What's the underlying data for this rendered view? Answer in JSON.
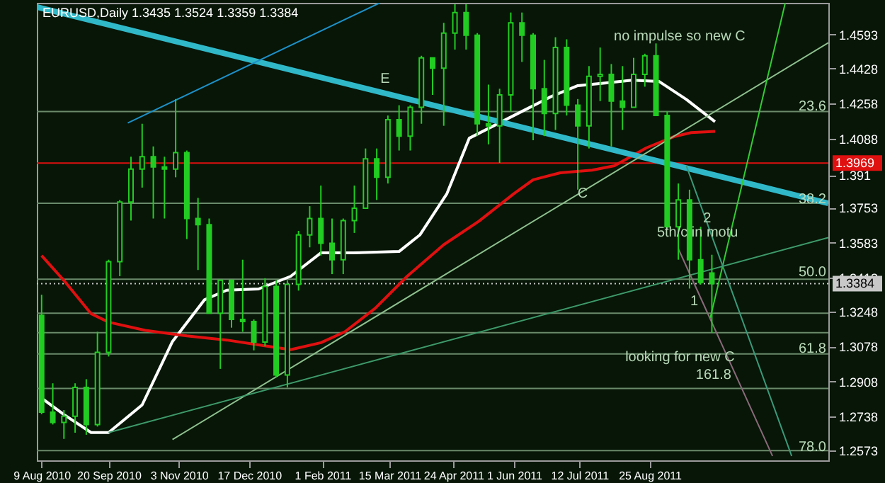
{
  "chart_data": {
    "type": "candlestick",
    "title": "EURUSD,Daily  1.3435 1.3524 1.3359 1.3384",
    "xlim": [
      "2010-08-06",
      "2011-12-15"
    ],
    "xticks": [
      {
        "value": "2010-08-09",
        "label": "9 Aug 2010"
      },
      {
        "value": "2010-09-20",
        "label": "20 Sep 2010"
      },
      {
        "value": "2010-11-03",
        "label": "3 Nov 2010"
      },
      {
        "value": "2010-12-17",
        "label": "17 Dec 2010"
      },
      {
        "value": "2011-02-01",
        "label": "1 Feb 2011"
      },
      {
        "value": "2011-03-15",
        "label": "15 Mar 2011"
      },
      {
        "value": "2011-04-24",
        "label": "24 Apr 2011"
      },
      {
        "value": "2011-06-01",
        "label": "1 Jun 2011"
      },
      {
        "value": "2011-07-12",
        "label": "12 Jul 2011"
      },
      {
        "value": "2011-08-25",
        "label": "25 Aug 2011"
      }
    ],
    "ylim": [
      1.2526,
      1.4747
    ],
    "yticks": [
      1.4593,
      1.4428,
      1.4258,
      1.4088,
      1.391,
      1.3753,
      1.3583,
      1.3413,
      1.3248,
      1.3078,
      1.2908,
      1.2738,
      1.2573
    ],
    "grid": false,
    "marker": "none",
    "series": [
      {
        "type": "candlestick",
        "color": "#22cc22",
        "x": [
          "2010-08-09",
          "2010-08-16",
          "2010-08-23",
          "2010-08-30",
          "2010-09-06",
          "2010-09-13",
          "2010-09-20",
          "2010-09-27",
          "2010-10-04",
          "2010-10-11",
          "2010-10-18",
          "2010-10-25",
          "2010-11-01",
          "2010-11-08",
          "2010-11-15",
          "2010-11-22",
          "2010-11-29",
          "2010-12-06",
          "2010-12-13",
          "2010-12-20",
          "2010-12-27",
          "2011-01-03",
          "2011-01-10",
          "2011-01-17",
          "2011-01-24",
          "2011-01-31",
          "2011-02-07",
          "2011-02-14",
          "2011-02-21",
          "2011-02-28",
          "2011-03-07",
          "2011-03-14",
          "2011-03-21",
          "2011-03-28",
          "2011-04-04",
          "2011-04-11",
          "2011-04-18",
          "2011-04-25",
          "2011-05-02",
          "2011-05-09",
          "2011-05-16",
          "2011-05-23",
          "2011-05-30",
          "2011-06-06",
          "2011-06-13",
          "2011-06-20",
          "2011-06-27",
          "2011-07-04",
          "2011-07-11",
          "2011-07-18",
          "2011-07-25",
          "2011-08-01",
          "2011-08-08",
          "2011-08-15",
          "2011-08-22",
          "2011-08-29",
          "2011-09-05",
          "2011-09-12",
          "2011-09-19",
          "2011-09-26",
          "2011-10-03"
        ],
        "ohlc": [
          [
            1.323,
            1.333,
            1.275,
            1.276
          ],
          [
            1.276,
            1.29,
            1.27,
            1.271
          ],
          [
            1.271,
            1.277,
            1.263,
            1.274
          ],
          [
            1.274,
            1.29,
            1.266,
            1.288
          ],
          [
            1.288,
            1.292,
            1.265,
            1.27
          ],
          [
            1.27,
            1.315,
            1.269,
            1.305
          ],
          [
            1.305,
            1.35,
            1.303,
            1.349
          ],
          [
            1.349,
            1.379,
            1.342,
            1.378
          ],
          [
            1.378,
            1.4,
            1.369,
            1.394
          ],
          [
            1.394,
            1.416,
            1.385,
            1.4
          ],
          [
            1.4,
            1.405,
            1.37,
            1.395
          ],
          [
            1.395,
            1.4,
            1.37,
            1.394
          ],
          [
            1.394,
            1.428,
            1.39,
            1.402
          ],
          [
            1.402,
            1.403,
            1.36,
            1.37
          ],
          [
            1.37,
            1.38,
            1.345,
            1.367
          ],
          [
            1.367,
            1.37,
            1.324,
            1.324
          ],
          [
            1.324,
            1.34,
            1.297,
            1.34
          ],
          [
            1.34,
            1.34,
            1.317,
            1.321
          ],
          [
            1.321,
            1.35,
            1.315,
            1.32
          ],
          [
            1.32,
            1.321,
            1.306,
            1.31
          ],
          [
            1.31,
            1.341,
            1.308,
            1.337
          ],
          [
            1.337,
            1.34,
            1.293,
            1.294
          ],
          [
            1.294,
            1.34,
            1.288,
            1.338
          ],
          [
            1.338,
            1.364,
            1.335,
            1.362
          ],
          [
            1.362,
            1.376,
            1.356,
            1.37
          ],
          [
            1.37,
            1.386,
            1.352,
            1.358
          ],
          [
            1.358,
            1.37,
            1.343,
            1.35
          ],
          [
            1.35,
            1.37,
            1.343,
            1.369
          ],
          [
            1.369,
            1.386,
            1.363,
            1.375
          ],
          [
            1.375,
            1.404,
            1.375,
            1.399
          ],
          [
            1.399,
            1.404,
            1.379,
            1.39
          ],
          [
            1.39,
            1.42,
            1.387,
            1.418
          ],
          [
            1.418,
            1.425,
            1.403,
            1.41
          ],
          [
            1.41,
            1.425,
            1.403,
            1.424
          ],
          [
            1.424,
            1.449,
            1.416,
            1.448
          ],
          [
            1.448,
            1.448,
            1.43,
            1.443
          ],
          [
            1.443,
            1.465,
            1.415,
            1.46
          ],
          [
            1.46,
            1.474,
            1.452,
            1.47
          ],
          [
            1.47,
            1.474,
            1.452,
            1.459
          ],
          [
            1.459,
            1.46,
            1.41,
            1.416
          ],
          [
            1.416,
            1.435,
            1.406,
            1.415
          ],
          [
            1.415,
            1.433,
            1.397,
            1.43
          ],
          [
            1.43,
            1.47,
            1.422,
            1.465
          ],
          [
            1.465,
            1.47,
            1.446,
            1.459
          ],
          [
            1.459,
            1.46,
            1.408,
            1.433
          ],
          [
            1.433,
            1.447,
            1.41,
            1.421
          ],
          [
            1.421,
            1.458,
            1.413,
            1.453
          ],
          [
            1.453,
            1.457,
            1.42,
            1.425
          ],
          [
            1.425,
            1.428,
            1.384,
            1.415
          ],
          [
            1.415,
            1.444,
            1.404,
            1.439
          ],
          [
            1.439,
            1.453,
            1.427,
            1.44
          ],
          [
            1.44,
            1.445,
            1.405,
            1.427
          ],
          [
            1.427,
            1.444,
            1.413,
            1.424
          ],
          [
            1.424,
            1.448,
            1.424,
            1.44
          ],
          [
            1.44,
            1.45,
            1.434,
            1.449
          ],
          [
            1.449,
            1.455,
            1.42,
            1.42
          ],
          [
            1.42,
            1.422,
            1.365,
            1.366
          ],
          [
            1.366,
            1.387,
            1.35,
            1.379
          ],
          [
            1.379,
            1.384,
            1.336,
            1.35
          ],
          [
            1.35,
            1.366,
            1.338,
            1.339
          ],
          [
            1.3435,
            1.3524,
            1.3145,
            1.3384
          ]
        ]
      },
      {
        "type": "line",
        "color": "#ffffff",
        "x": [
          "2010-08-09",
          "2010-08-23",
          "2010-09-09",
          "2010-09-20",
          "2010-10-11",
          "2010-10-30",
          "2010-11-19",
          "2010-12-03",
          "2010-12-23",
          "2011-01-12",
          "2011-01-31",
          "2011-02-20",
          "2011-03-21",
          "2011-04-03",
          "2011-04-20",
          "2011-05-04",
          "2011-05-21",
          "2011-06-07",
          "2011-06-24",
          "2011-07-11",
          "2011-07-28",
          "2011-08-14",
          "2011-08-31",
          "2011-09-17",
          "2011-10-05"
        ],
        "values": [
          1.2828,
          1.2748,
          1.2661,
          1.2661,
          1.2795,
          1.3103,
          1.3305,
          1.3352,
          1.3358,
          1.3419,
          1.3533,
          1.3533,
          1.354,
          1.362,
          1.3821,
          1.409,
          1.4157,
          1.4224,
          1.4291,
          1.4345,
          1.4358,
          1.4371,
          1.4365,
          1.4278,
          1.417
        ]
      },
      {
        "type": "line",
        "color": "#e01010",
        "x": [
          "2010-08-09",
          "2010-08-23",
          "2010-09-09",
          "2010-09-20",
          "2010-10-13",
          "2010-11-08",
          "2010-12-03",
          "2010-12-26",
          "2011-01-12",
          "2011-01-31",
          "2011-02-15",
          "2011-03-06",
          "2011-03-26",
          "2011-04-18",
          "2011-05-10",
          "2011-06-01",
          "2011-06-13",
          "2011-06-30",
          "2011-07-20",
          "2011-08-03",
          "2011-08-23",
          "2011-09-09",
          "2011-09-20",
          "2011-10-05"
        ],
        "values": [
          1.352,
          1.3399,
          1.3238,
          1.3197,
          1.3157,
          1.313,
          1.311,
          1.3083,
          1.3063,
          1.3097,
          1.315,
          1.3264,
          1.3419,
          1.3573,
          1.3687,
          1.3821,
          1.3888,
          1.3922,
          1.3935,
          1.3956,
          1.4043,
          1.4097,
          1.4117,
          1.4123
        ]
      },
      {
        "type": "line",
        "color": "#30b8c8",
        "x": [
          "2010-08-06",
          "2011-12-15"
        ],
        "values": [
          1.4727,
          1.3774
        ]
      },
      {
        "type": "line",
        "color": "#1e90c8",
        "x": [
          "2010-10-02",
          "2011-03-09"
        ],
        "values": [
          1.4164,
          1.4747
        ]
      },
      {
        "type": "line",
        "color": "#8fc08f",
        "x": [
          "2010-10-30",
          "2011-12-15"
        ],
        "values": [
          1.2627,
          1.4553
        ]
      },
      {
        "type": "line",
        "color": "#3e9a6a",
        "x": [
          "2010-09-20",
          "2011-12-15"
        ],
        "values": [
          1.2661,
          1.3607
        ]
      },
      {
        "type": "line",
        "color": "#33cc33",
        "x": [
          "2011-10-02",
          "2011-11-18"
        ],
        "values": [
          1.3217,
          1.4747
        ]
      },
      {
        "type": "line",
        "color": "#3a9a7a",
        "x": [
          "2011-09-17",
          "2011-11-22"
        ],
        "values": [
          1.3956,
          1.2547
        ]
      },
      {
        "type": "line",
        "color": "#8a6a7a",
        "x": [
          "2011-09-12",
          "2011-11-10"
        ],
        "values": [
          1.3553,
          1.2547
        ]
      }
    ],
    "ref_lines": [
      {
        "axis": "y",
        "value": 1.4219,
        "label": null,
        "color": "#6a8a6a"
      },
      {
        "axis": "y",
        "value": 1.3774,
        "label": null,
        "color": "#6a8a6a"
      },
      {
        "axis": "y",
        "value": 1.3405,
        "label": null,
        "color": "#6a8a6a"
      },
      {
        "axis": "y",
        "value": 1.3043,
        "label": null,
        "color": "#6a8a6a"
      },
      {
        "axis": "y",
        "value": 1.2573,
        "label": null,
        "color": "#6a8a6a"
      },
      {
        "axis": "y",
        "value": 1.324,
        "label": null,
        "color": "#6a8a6a"
      },
      {
        "axis": "y",
        "value": 1.3146,
        "label": null,
        "color": "#6a8a6a"
      },
      {
        "axis": "y",
        "value": 1.2875,
        "label": null,
        "color": "#6a8a6a"
      },
      {
        "axis": "y",
        "value": 1.3969,
        "label": "1.3969",
        "color": "#e01010"
      },
      {
        "axis": "y",
        "value": 1.3384,
        "label": "1.3384",
        "color": "#c8c8c8",
        "line_style": "dotted"
      }
    ],
    "annotations": [
      "E",
      "no impulse so new C",
      "161.8",
      {
        "text": "C",
        "x": "2011-07-14",
        "y": 1.3821
      },
      {
        "text": "5th/c in motu",
        "x": "2011-09-24",
        "y": 1.3633
      },
      {
        "text": "2",
        "x": "2011-09-30",
        "y": 1.3701
      },
      {
        "text": "1",
        "x": "2011-09-22",
        "y": 1.3298
      },
      {
        "text": "looking for new C",
        "x": "2011-09-13",
        "y": 1.3029
      },
      {
        "text": "23.6",
        "x": "2011-12-05",
        "y": 1.4244
      },
      {
        "text": "38.2",
        "x": "2011-12-05",
        "y": 1.3795
      },
      {
        "text": "50.0",
        "x": "2011-12-05",
        "y": 1.3439
      },
      {
        "text": "61.8",
        "x": "2011-12-05",
        "y": 1.307
      },
      {
        "text": "78.0",
        "x": "2011-12-05",
        "y": 1.2593
      }
    ]
  }
}
